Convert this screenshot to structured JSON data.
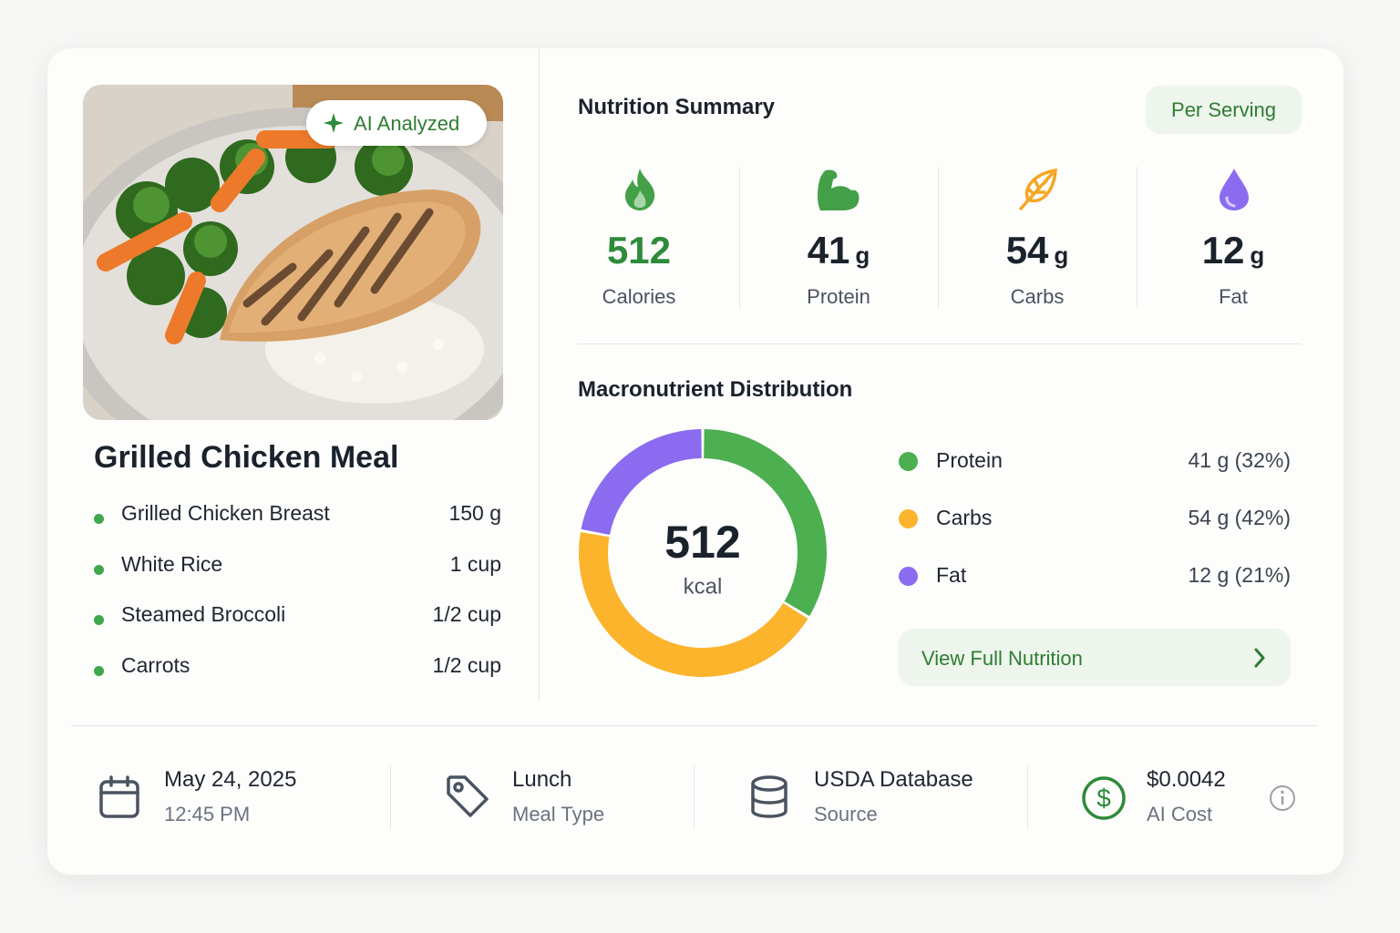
{
  "image_badge": "AI Analyzed",
  "meal": {
    "title": "Grilled Chicken Meal",
    "items": [
      {
        "name": "Grilled Chicken Breast",
        "amount": "150 g"
      },
      {
        "name": "White Rice",
        "amount": "1 cup"
      },
      {
        "name": "Steamed Broccoli",
        "amount": "1/2 cup"
      },
      {
        "name": "Carrots",
        "amount": "1/2 cup"
      }
    ]
  },
  "summary": {
    "title": "Nutrition Summary",
    "badge": "Per Serving",
    "stats": [
      {
        "value": "512",
        "label": "Calories"
      },
      {
        "value": "41",
        "unit": "g",
        "label": "Protein"
      },
      {
        "value": "54",
        "unit": "g",
        "label": "Carbs"
      },
      {
        "value": "12",
        "unit": "g",
        "label": "Fat"
      }
    ]
  },
  "chart_data": {
    "type": "pie",
    "title": "Macronutrient Distribution",
    "center_value": "512",
    "center_label": "kcal",
    "categories": [
      "Protein",
      "Carbs",
      "Fat"
    ],
    "values": [
      32,
      42,
      21
    ],
    "value_labels": [
      "41 g (32%)",
      "54 g (42%)",
      "12 g (21%)"
    ],
    "colors": [
      "#4caf50",
      "#fbb42c",
      "#8b6cf0"
    ]
  },
  "button": "View Full Nutrition",
  "footer": [
    {
      "title": "May 24, 2025",
      "subtitle": "12:45 PM"
    },
    {
      "title": "Lunch",
      "subtitle": "Meal Type"
    },
    {
      "title": "USDA Database",
      "subtitle": "Source"
    },
    {
      "title": "$0.0042",
      "subtitle": "AI Cost"
    }
  ]
}
